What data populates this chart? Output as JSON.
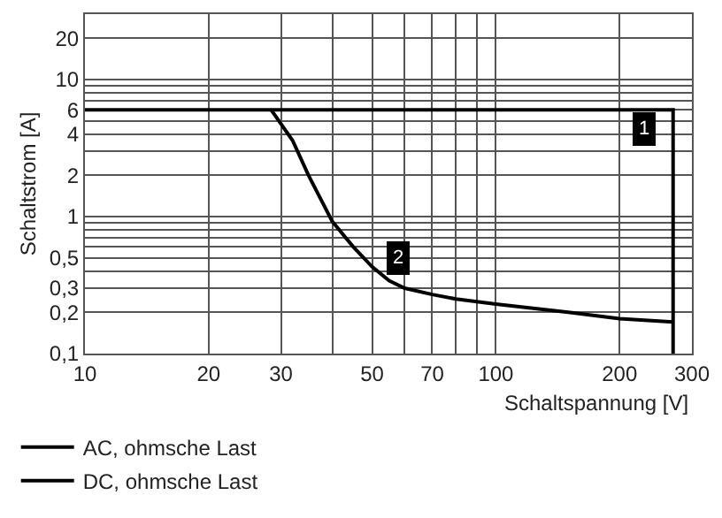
{
  "chart_data": {
    "type": "line",
    "xlabel": "Schaltspannung [V]",
    "ylabel": "Schaltstrom [A]",
    "log": "xy",
    "xlim": [
      10,
      300
    ],
    "ylim": [
      0.1,
      30
    ],
    "xticks": [
      10,
      20,
      30,
      {
        "value": 40,
        "label": null
      },
      50,
      {
        "value": 60,
        "label": null
      },
      70,
      {
        "value": 80,
        "label": null
      },
      {
        "value": 90,
        "label": null
      },
      100,
      200,
      300
    ],
    "yticks": [
      {
        "value": 0.1,
        "label": "0,1"
      },
      {
        "value": 0.2,
        "label": "0,2"
      },
      {
        "value": 0.3,
        "label": "0,3"
      },
      {
        "value": 0.4,
        "label": null
      },
      {
        "value": 0.5,
        "label": "0,5"
      },
      {
        "value": 0.6,
        "label": null
      },
      {
        "value": 0.7,
        "label": null
      },
      {
        "value": 0.8,
        "label": null
      },
      {
        "value": 0.9,
        "label": null
      },
      1,
      2,
      {
        "value": 3,
        "label": null
      },
      4,
      {
        "value": 5,
        "label": null
      },
      6,
      {
        "value": 7,
        "label": null
      },
      {
        "value": 8,
        "label": null
      },
      {
        "value": 9,
        "label": null
      },
      10,
      20
    ],
    "grid": true,
    "legend": "bottom",
    "marker": "none",
    "line_style": "solid",
    "series": [
      {
        "name": "AC, ohmsche Last",
        "color": "#000000",
        "x": [
          10,
          270,
          270
        ],
        "values": [
          6,
          6,
          0.1
        ]
      },
      {
        "name": "DC, ohmsche Last",
        "color": "#000000",
        "x": [
          28.4,
          32,
          35,
          40,
          45,
          50,
          55,
          60,
          70,
          80,
          100,
          150,
          200,
          270
        ],
        "values": [
          6,
          3.6,
          2.0,
          0.92,
          0.6,
          0.43,
          0.34,
          0.3,
          0.27,
          0.25,
          0.23,
          0.2,
          0.18,
          0.17
        ]
      }
    ],
    "annotations": [
      {
        "text": "1",
        "x": 230,
        "y": 4.4
      },
      {
        "text": "2",
        "x": 58,
        "y": 0.5
      }
    ]
  }
}
